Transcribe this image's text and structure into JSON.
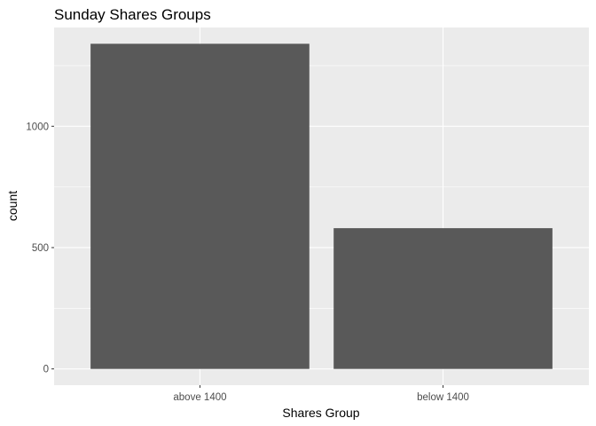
{
  "chart_data": {
    "type": "bar",
    "title": "Sunday Shares Groups",
    "xlabel": "Shares Group",
    "ylabel": "count",
    "categories": [
      "above 1400",
      "below 1400"
    ],
    "values": [
      1340,
      580
    ],
    "ylim": [
      -67,
      1407
    ],
    "y_major_ticks": [
      0,
      500,
      1000
    ],
    "y_tick_labels": [
      "0",
      "500",
      "1000"
    ],
    "y_minor_ticks": [
      250,
      750,
      1250
    ],
    "grid": true,
    "colors": {
      "bar": "#595959",
      "panel": "#ebebeb",
      "grid": "#ffffff"
    }
  }
}
